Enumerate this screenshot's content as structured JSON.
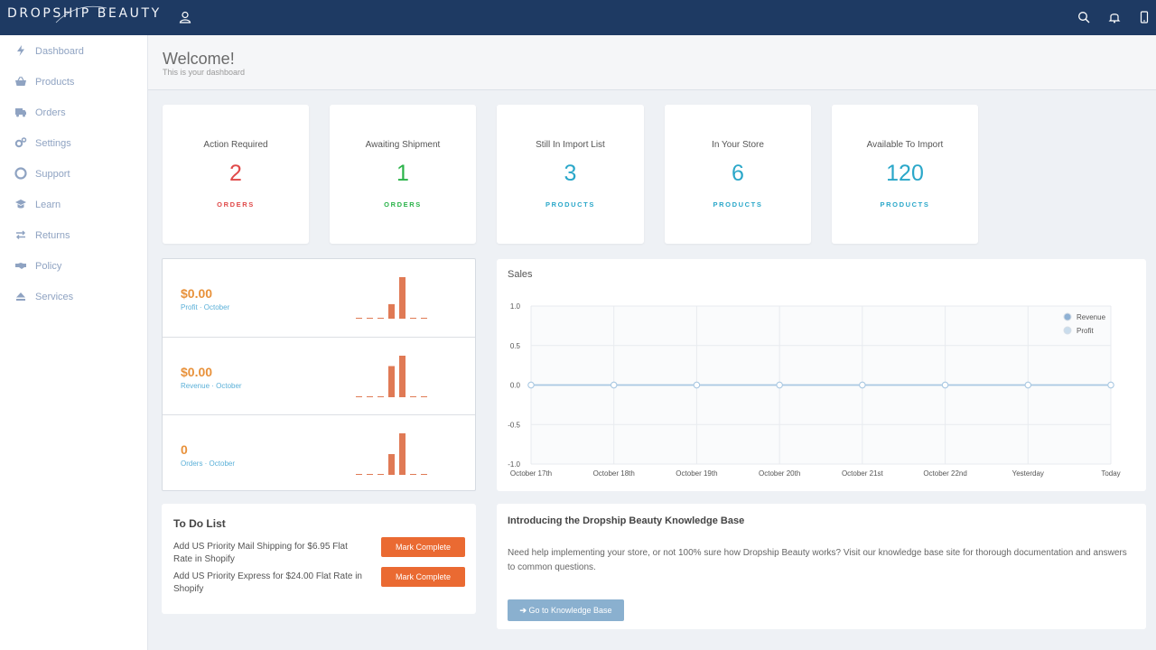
{
  "brand": {
    "name": "DROPSHIP BEAUTY"
  },
  "topbar": {
    "icons": [
      "user-icon",
      "search-icon",
      "bell-icon",
      "phone-icon"
    ]
  },
  "sidebar": {
    "items": [
      {
        "label": "Dashboard",
        "icon": "bolt-icon"
      },
      {
        "label": "Products",
        "icon": "basket-icon"
      },
      {
        "label": "Orders",
        "icon": "truck-icon"
      },
      {
        "label": "Settings",
        "icon": "gears-icon"
      },
      {
        "label": "Support",
        "icon": "lifebuoy-icon"
      },
      {
        "label": "Learn",
        "icon": "graduation-cap-icon"
      },
      {
        "label": "Returns",
        "icon": "exchange-icon"
      },
      {
        "label": "Policy",
        "icon": "handshake-icon"
      },
      {
        "label": "Services",
        "icon": "eject-icon"
      }
    ]
  },
  "header": {
    "title": "Welcome!",
    "subtitle": "This is your dashboard"
  },
  "stats": [
    {
      "title": "Action Required",
      "value": "2",
      "unit": "ORDERS",
      "color": "#e04a4a"
    },
    {
      "title": "Awaiting Shipment",
      "value": "1",
      "unit": "ORDERS",
      "color": "#2bb34a"
    },
    {
      "title": "Still In Import List",
      "value": "3",
      "unit": "PRODUCTS",
      "color": "#2aa7c9"
    },
    {
      "title": "In Your Store",
      "value": "6",
      "unit": "PRODUCTS",
      "color": "#2aa7c9"
    },
    {
      "title": "Available To Import",
      "value": "120",
      "unit": "PRODUCTS",
      "color": "#2aa7c9"
    }
  ],
  "mini": [
    {
      "value": "$0.00",
      "label": "Profit · October",
      "bars": [
        0,
        0,
        0,
        0.35,
        1,
        0,
        0
      ]
    },
    {
      "value": "$0.00",
      "label": "Revenue · October",
      "bars": [
        0,
        0,
        0,
        0.75,
        1,
        0,
        0
      ]
    },
    {
      "value": "0",
      "label": "Orders · October",
      "bars": [
        0,
        0,
        0,
        0.5,
        1,
        0,
        0
      ]
    }
  ],
  "colors": {
    "bar": "#e07a55",
    "accent": "#1e3a63",
    "line": "#a9c8e2"
  },
  "chart_data": {
    "type": "line",
    "title": "Sales",
    "x": [
      "October 17th",
      "October 18th",
      "October 19th",
      "October 20th",
      "October 21st",
      "October 22nd",
      "Yesterday",
      "Today"
    ],
    "series": [
      {
        "name": "Revenue",
        "values": [
          0,
          0,
          0,
          0,
          0,
          0,
          0,
          0
        ],
        "color": "#8fb1d4"
      },
      {
        "name": "Profit",
        "values": [
          0,
          0,
          0,
          0,
          0,
          0,
          0,
          0
        ],
        "color": "#c9dcec"
      }
    ],
    "ylim": [
      -1.0,
      1.0
    ],
    "yticks": [
      "1.0",
      "0.5",
      "0.0",
      "-0.5",
      "-1.0"
    ],
    "grid": true,
    "legend": "top-right"
  },
  "todo": {
    "title": "To Do List",
    "items": [
      {
        "text": "Add US Priority Mail Shipping for $6.95 Flat Rate in Shopify",
        "button": "Mark Complete"
      },
      {
        "text": "Add US Priority Express for $24.00 Flat Rate in Shopify",
        "button": "Mark Complete"
      }
    ]
  },
  "kb": {
    "title": "Introducing the Dropship Beauty Knowledge Base",
    "text": "Need help implementing your store, or not 100% sure how Dropship Beauty works? Visit our knowledge base site for thorough documentation and answers to common questions.",
    "button": "Go to Knowledge Base"
  }
}
